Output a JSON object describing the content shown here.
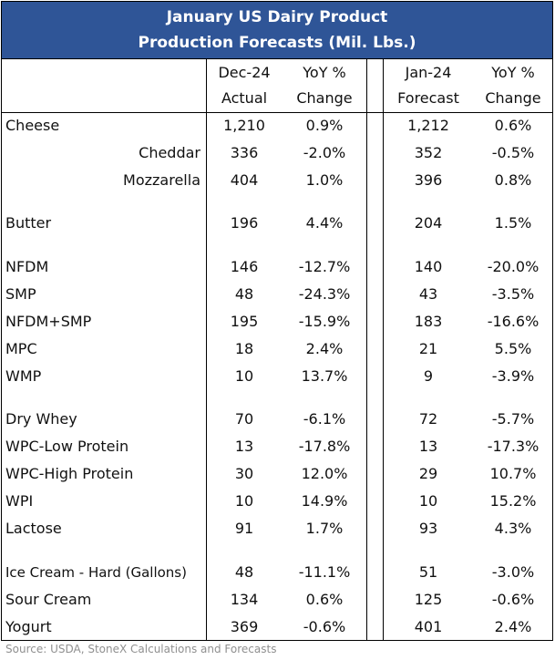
{
  "title": {
    "line1": "January US Dairy Product",
    "line2": "Production Forecasts (Mil. Lbs.)"
  },
  "headers": {
    "dec_actual_1": "Dec-24",
    "dec_actual_2": "Actual",
    "yoy1_1": "YoY %",
    "yoy1_2": "Change",
    "jan_forecast_1": "Jan-24",
    "jan_forecast_2": "Forecast",
    "yoy2_1": "YoY %",
    "yoy2_2": "Change"
  },
  "rows": [
    {
      "label": "Cheese",
      "actual": "1,210",
      "yoy_actual": "0.9%",
      "forecast": "1,212",
      "yoy_forecast": "0.6%",
      "indent": false
    },
    {
      "label": "Cheddar",
      "actual": "336",
      "yoy_actual": "-2.0%",
      "forecast": "352",
      "yoy_forecast": "-0.5%",
      "indent": true
    },
    {
      "label": "Mozzarella",
      "actual": "404",
      "yoy_actual": "1.0%",
      "forecast": "396",
      "yoy_forecast": "0.8%",
      "indent": true
    },
    {
      "label": "Butter",
      "actual": "196",
      "yoy_actual": "4.4%",
      "forecast": "204",
      "yoy_forecast": "1.5%",
      "indent": false
    },
    {
      "label": "NFDM",
      "actual": "146",
      "yoy_actual": "-12.7%",
      "forecast": "140",
      "yoy_forecast": "-20.0%",
      "indent": false
    },
    {
      "label": "SMP",
      "actual": "48",
      "yoy_actual": "-24.3%",
      "forecast": "43",
      "yoy_forecast": "-3.5%",
      "indent": false
    },
    {
      "label": "NFDM+SMP",
      "actual": "195",
      "yoy_actual": "-15.9%",
      "forecast": "183",
      "yoy_forecast": "-16.6%",
      "indent": false
    },
    {
      "label": "MPC",
      "actual": "18",
      "yoy_actual": "2.4%",
      "forecast": "21",
      "yoy_forecast": "5.5%",
      "indent": false
    },
    {
      "label": "WMP",
      "actual": "10",
      "yoy_actual": "13.7%",
      "forecast": "9",
      "yoy_forecast": "-3.9%",
      "indent": false
    },
    {
      "label": "Dry Whey",
      "actual": "70",
      "yoy_actual": "-6.1%",
      "forecast": "72",
      "yoy_forecast": "-5.7%",
      "indent": false
    },
    {
      "label": "WPC-Low Protein",
      "actual": "13",
      "yoy_actual": "-17.8%",
      "forecast": "13",
      "yoy_forecast": "-17.3%",
      "indent": false
    },
    {
      "label": "WPC-High Protein",
      "actual": "30",
      "yoy_actual": "12.0%",
      "forecast": "29",
      "yoy_forecast": "10.7%",
      "indent": false
    },
    {
      "label": "WPI",
      "actual": "10",
      "yoy_actual": "14.9%",
      "forecast": "10",
      "yoy_forecast": "15.2%",
      "indent": false
    },
    {
      "label": "Lactose",
      "actual": "91",
      "yoy_actual": "1.7%",
      "forecast": "93",
      "yoy_forecast": "4.3%",
      "indent": false
    },
    {
      "label": "Ice Cream - Hard (Gallons)",
      "actual": "48",
      "yoy_actual": "-11.1%",
      "forecast": "51",
      "yoy_forecast": "-3.0%",
      "indent": false
    },
    {
      "label": "Sour Cream",
      "actual": "134",
      "yoy_actual": "0.6%",
      "forecast": "125",
      "yoy_forecast": "-0.6%",
      "indent": false
    },
    {
      "label": "Yogurt",
      "actual": "369",
      "yoy_actual": "-0.6%",
      "forecast": "401",
      "yoy_forecast": "2.4%",
      "indent": false
    }
  ],
  "source": "Source: USDA, StoneX Calculations and Forecasts",
  "colors": {
    "title_bg": "#2f5597",
    "title_text": "#ffffff",
    "source_text": "#909090"
  }
}
